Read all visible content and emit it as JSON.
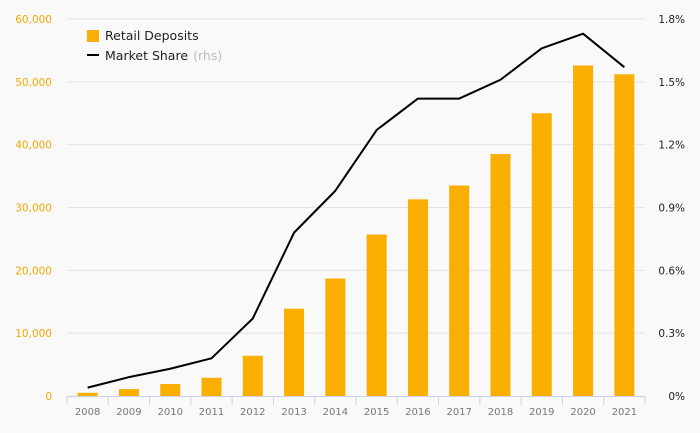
{
  "chart_data": {
    "type": "bar",
    "title": "",
    "xlabel": "",
    "ylabel": "",
    "categories": [
      "2008",
      "2009",
      "2010",
      "2011",
      "2012",
      "2013",
      "2014",
      "2015",
      "2016",
      "2017",
      "2018",
      "2019",
      "2020",
      "2021"
    ],
    "series": [
      {
        "name": "Retail Deposits",
        "type": "bar",
        "axis": "left",
        "color": "#f9ae00",
        "values": [
          500,
          1100,
          1900,
          2900,
          6400,
          13900,
          18700,
          25700,
          31300,
          33500,
          38500,
          45000,
          52600,
          51200
        ]
      },
      {
        "name": "Market Share",
        "name_suffix": "(rhs)",
        "type": "line",
        "axis": "right",
        "color": "#000000",
        "values": [
          0.04,
          0.09,
          0.13,
          0.18,
          0.37,
          0.78,
          0.98,
          1.27,
          1.42,
          1.42,
          1.51,
          1.66,
          1.73,
          1.57
        ]
      }
    ],
    "ylim": [
      0,
      60000
    ],
    "y2lim": [
      0,
      1.8
    ],
    "left_ticks": [
      "0",
      "10,000",
      "20,000",
      "30,000",
      "40,000",
      "50,000",
      "60,000"
    ],
    "right_ticks": [
      "0%",
      "0.3%",
      "0.6%",
      "0.9%",
      "1.2%",
      "1.5%",
      "1.8%"
    ],
    "grid": true,
    "legend_position": "top-left"
  }
}
